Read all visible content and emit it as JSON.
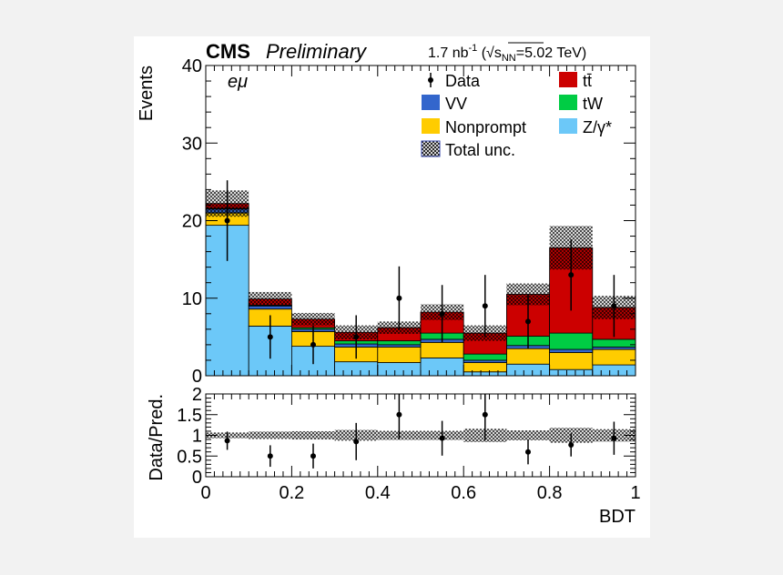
{
  "header": {
    "experiment": "CMS",
    "status": "Preliminary",
    "lumi_prefix": "1.7 nb",
    "lumi_exp": "-1",
    "energy_open": " (",
    "energy_s": "s",
    "energy_sub": "NN",
    "energy_value": "=5.02 TeV)",
    "channel": "eμ"
  },
  "chart_data": [
    {
      "type": "bar",
      "stacked": true,
      "ylabel": "Events",
      "xlim": [
        0,
        1
      ],
      "ylim": [
        0,
        40
      ],
      "y_ticks": [
        "0",
        "10",
        "20",
        "30",
        "40"
      ],
      "bin_edges": [
        0,
        0.1,
        0.2,
        0.3,
        0.4,
        0.5,
        0.6,
        0.7,
        0.8,
        0.9,
        1.0
      ],
      "series": [
        {
          "name": "Z/γ*",
          "color": "#6cc8f8",
          "values": [
            19.4,
            6.4,
            3.8,
            1.8,
            1.7,
            2.3,
            0.5,
            1.5,
            0.8,
            1.4
          ]
        },
        {
          "name": "Nonprompt",
          "color": "#ffcc00",
          "values": [
            1.6,
            2.2,
            1.9,
            1.9,
            2.0,
            2.0,
            1.2,
            2.0,
            2.2,
            2.0
          ]
        },
        {
          "name": "VV",
          "color": "#3366cc",
          "values": [
            0.5,
            0.4,
            0.3,
            0.4,
            0.3,
            0.4,
            0.3,
            0.4,
            0.4,
            0.3
          ]
        },
        {
          "name": "tW",
          "color": "#00cc44",
          "values": [
            0.1,
            0.1,
            0.2,
            0.4,
            0.5,
            0.8,
            0.8,
            1.2,
            2.1,
            1.0
          ]
        },
        {
          "name": "tt̄",
          "color": "#cc0000",
          "values": [
            0.6,
            0.8,
            1.1,
            1.1,
            1.7,
            2.7,
            2.7,
            5.4,
            11.0,
            4.1
          ]
        }
      ],
      "total_unc_label": "Total unc.",
      "total_unc": [
        1.7,
        0.9,
        0.8,
        0.9,
        0.8,
        1.0,
        1.0,
        1.4,
        2.8,
        1.5
      ],
      "data_label": "Data",
      "data": {
        "x": [
          0.05,
          0.15,
          0.25,
          0.35,
          0.45,
          0.55,
          0.65,
          0.75,
          0.85,
          0.95
        ],
        "y": [
          20,
          5,
          4,
          5,
          10,
          8,
          9,
          7,
          13,
          9
        ],
        "err": [
          5.2,
          2.8,
          2.5,
          2.8,
          4.1,
          3.7,
          4.0,
          3.5,
          4.6,
          4.0
        ]
      },
      "legend_position": "top-right"
    },
    {
      "type": "scatter",
      "ylabel": "Data/Pred.",
      "xlabel": "BDT",
      "xlim": [
        0,
        1
      ],
      "ylim": [
        0,
        2
      ],
      "x_ticks": [
        "0",
        "0.2",
        "0.4",
        "0.6",
        "0.8",
        "1"
      ],
      "y_ticks": [
        "0",
        "0.5",
        "1",
        "1.5",
        "2"
      ],
      "ratio": {
        "x": [
          0.05,
          0.15,
          0.25,
          0.35,
          0.45,
          0.55,
          0.65,
          0.75,
          0.85,
          0.95
        ],
        "y": [
          0.87,
          0.5,
          0.5,
          0.85,
          1.5,
          0.93,
          1.5,
          0.6,
          0.77,
          0.93
        ],
        "err": [
          0.22,
          0.26,
          0.3,
          0.45,
          0.6,
          0.42,
          0.62,
          0.3,
          0.28,
          0.4
        ]
      },
      "unc_band": [
        0.07,
        0.09,
        0.1,
        0.13,
        0.11,
        0.11,
        0.16,
        0.12,
        0.18,
        0.15
      ]
    }
  ]
}
